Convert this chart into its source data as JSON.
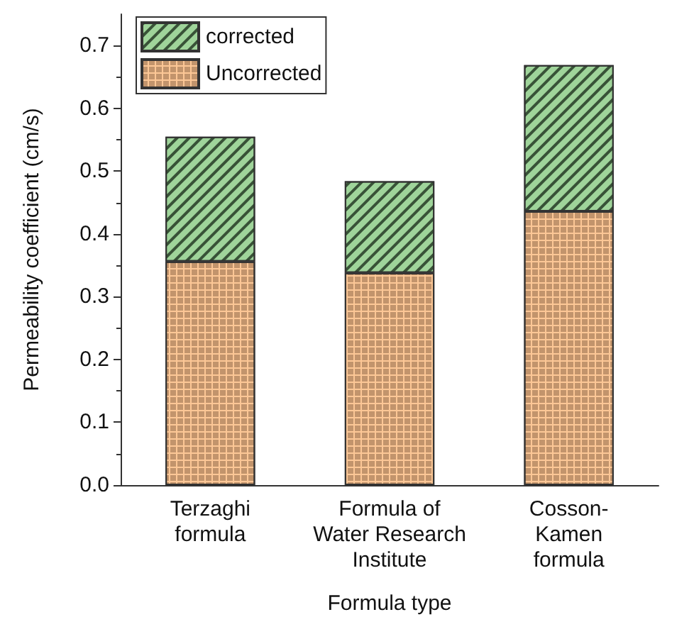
{
  "chart_data": {
    "type": "bar",
    "stacked": true,
    "xlabel": "Formula type",
    "ylabel": "Permeability coefficient (cm/s)",
    "categories": [
      "Terzaghi\nformula",
      "Formula of\nWater Research\nInstitute",
      "Cosson-\nKamen\nformula"
    ],
    "series": [
      {
        "name": "Uncorrected",
        "color": "#fcc796",
        "values": [
          0.356,
          0.338,
          0.436
        ]
      },
      {
        "name": "corrected",
        "color": "#9fd49a",
        "values": [
          0.199,
          0.146,
          0.233
        ]
      }
    ],
    "ylim": [
      0,
      0.75
    ],
    "yticks": [
      {
        "value": 0,
        "label": "0.0"
      },
      0.1,
      0.2,
      0.3,
      0.4,
      0.5,
      0.6,
      0.7
    ],
    "grid": false,
    "legend": "top left"
  }
}
